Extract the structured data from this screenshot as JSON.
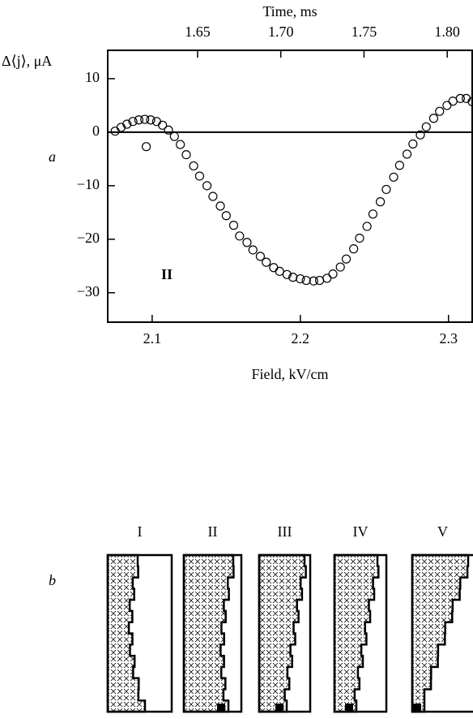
{
  "chart_data": {
    "type": "scatter",
    "title": "Time, ms",
    "xlabel": "Field, kV/cm",
    "ylabel": "Δ⟨j⟩, μA",
    "annotation": "II",
    "xlim": [
      2.07,
      2.316
    ],
    "xticks": [
      2.1,
      2.2,
      2.3
    ],
    "x2lim": [
      1.596,
      1.815
    ],
    "x2ticks": [
      1.65,
      {
        "value": 1.7,
        "label": "1.70"
      },
      1.75,
      {
        "value": 1.8,
        "label": "1.80"
      }
    ],
    "ylim": [
      -35.5,
      15.3
    ],
    "yticks": [
      10,
      0,
      {
        "value": -10,
        "label": "−10"
      },
      {
        "value": -20,
        "label": "−20"
      },
      {
        "value": -30,
        "label": "−30"
      }
    ],
    "grid": false,
    "color": "#000000",
    "x": [
      2.075,
      2.079,
      2.083,
      2.087,
      2.091,
      2.095,
      2.096,
      2.099,
      2.103,
      2.107,
      2.111,
      2.115,
      2.119,
      2.123,
      2.128,
      2.132,
      2.137,
      2.141,
      2.146,
      2.15,
      2.155,
      2.159,
      2.164,
      2.168,
      2.173,
      2.177,
      2.182,
      2.186,
      2.191,
      2.195,
      2.2,
      2.204,
      2.209,
      2.213,
      2.218,
      2.222,
      2.227,
      2.231,
      2.236,
      2.24,
      2.245,
      2.249,
      2.254,
      2.258,
      2.263,
      2.267,
      2.272,
      2.276,
      2.281,
      2.285,
      2.29,
      2.294,
      2.299,
      2.303,
      2.308,
      2.312,
      2.316
    ],
    "values": [
      0.2,
      0.9,
      1.5,
      2.0,
      2.3,
      2.4,
      -2.7,
      2.3,
      2.0,
      1.3,
      0.4,
      -0.8,
      -2.3,
      -4.2,
      -6.3,
      -8.2,
      -10.0,
      -12.0,
      -13.8,
      -15.6,
      -17.4,
      -19.4,
      -20.6,
      -22.0,
      -23.2,
      -24.3,
      -25.3,
      -26.0,
      -26.6,
      -27.1,
      -27.4,
      -27.7,
      -27.8,
      -27.7,
      -27.3,
      -26.5,
      -25.2,
      -23.7,
      -21.8,
      -19.8,
      -17.6,
      -15.3,
      -13.0,
      -10.7,
      -8.4,
      -6.2,
      -4.1,
      -2.2,
      -0.5,
      1.0,
      2.6,
      3.9,
      5.0,
      5.8,
      6.3,
      6.3,
      5.7
    ]
  },
  "panel_labels": [
    "a",
    "b"
  ],
  "panel_b_columns": [
    "I",
    "II",
    "III",
    "IV",
    "V"
  ]
}
